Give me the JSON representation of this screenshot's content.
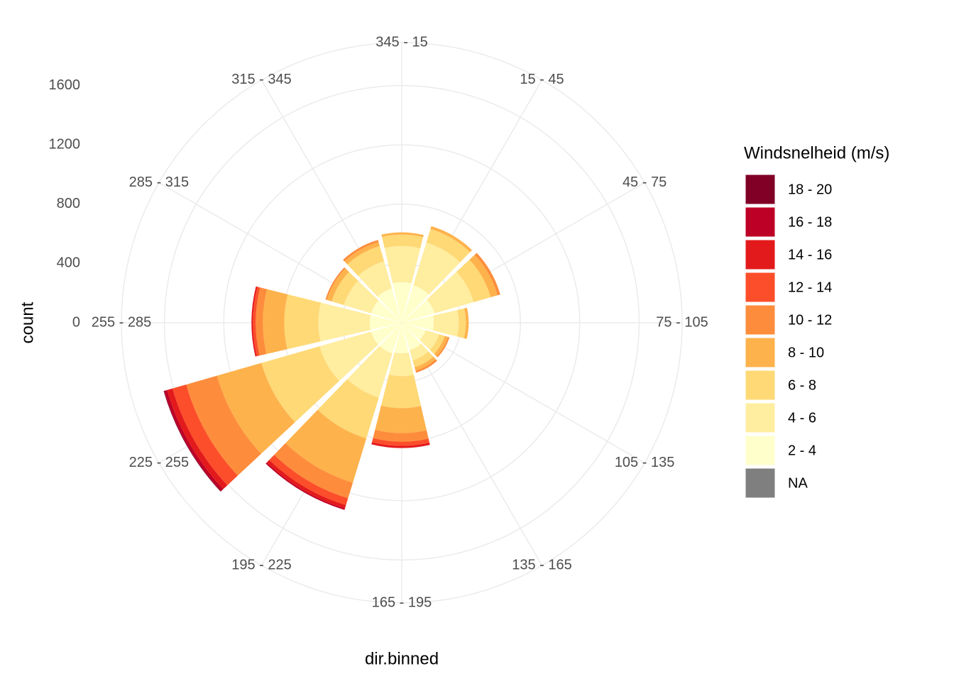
{
  "chart_data": {
    "type": "polar_bar",
    "x_label": "dir.binned",
    "y_label": "count",
    "legend_title": "Windsnelheid (m/s)",
    "categories": [
      "345 - 15",
      "15 - 45",
      "45 - 75",
      "75 - 105",
      "105 - 135",
      "135 - 165",
      "165 - 195",
      "195 - 225",
      "225 - 255",
      "255 - 285",
      "285 - 315",
      "315 - 345"
    ],
    "ylim": [
      0,
      1890
    ],
    "yticks": [
      0,
      400,
      800,
      1200,
      1600
    ],
    "grid": true,
    "series": [
      {
        "name": "2 - 4",
        "color": "#FFFFCC",
        "values": [
          274,
          264,
          230,
          216,
          168,
          192,
          206,
          216,
          216,
          216,
          216,
          240
        ]
      },
      {
        "name": "4 - 6",
        "color": "#FFEDA0",
        "values": [
          244,
          302,
          274,
          168,
          96,
          72,
          154,
          312,
          360,
          346,
          192,
          192
        ]
      },
      {
        "name": "6 - 8",
        "color": "#FED976",
        "values": [
          77,
          96,
          120,
          48,
          38,
          48,
          216,
          288,
          408,
          230,
          86,
          106
        ]
      },
      {
        "name": "8 - 10",
        "color": "#FEB24C",
        "values": [
          15,
          20,
          48,
          19,
          24,
          24,
          168,
          312,
          312,
          144,
          34,
          28
        ]
      },
      {
        "name": "10 - 12",
        "color": "#FD8D3C",
        "values": [
          0,
          0,
          19,
          0,
          10,
          14,
          58,
          110,
          216,
          48,
          10,
          15
        ]
      },
      {
        "name": "12 - 14",
        "color": "#FC4E2A",
        "values": [
          0,
          0,
          0,
          0,
          0,
          0,
          28,
          48,
          96,
          19,
          0,
          0
        ]
      },
      {
        "name": "14 - 16",
        "color": "#E31A1C",
        "values": [
          0,
          0,
          0,
          0,
          0,
          0,
          15,
          24,
          38,
          10,
          0,
          0
        ]
      },
      {
        "name": "16 - 18",
        "color": "#BD0026",
        "values": [
          0,
          0,
          0,
          0,
          0,
          0,
          0,
          10,
          20,
          0,
          0,
          0
        ]
      },
      {
        "name": "18 - 20",
        "color": "#800026",
        "values": [
          0,
          0,
          0,
          0,
          0,
          0,
          0,
          0,
          4,
          0,
          0,
          0
        ]
      },
      {
        "name": "NA",
        "color": "#7F7F7F",
        "values": [
          0,
          0,
          0,
          0,
          0,
          0,
          0,
          0,
          0,
          0,
          0,
          0
        ]
      }
    ]
  }
}
